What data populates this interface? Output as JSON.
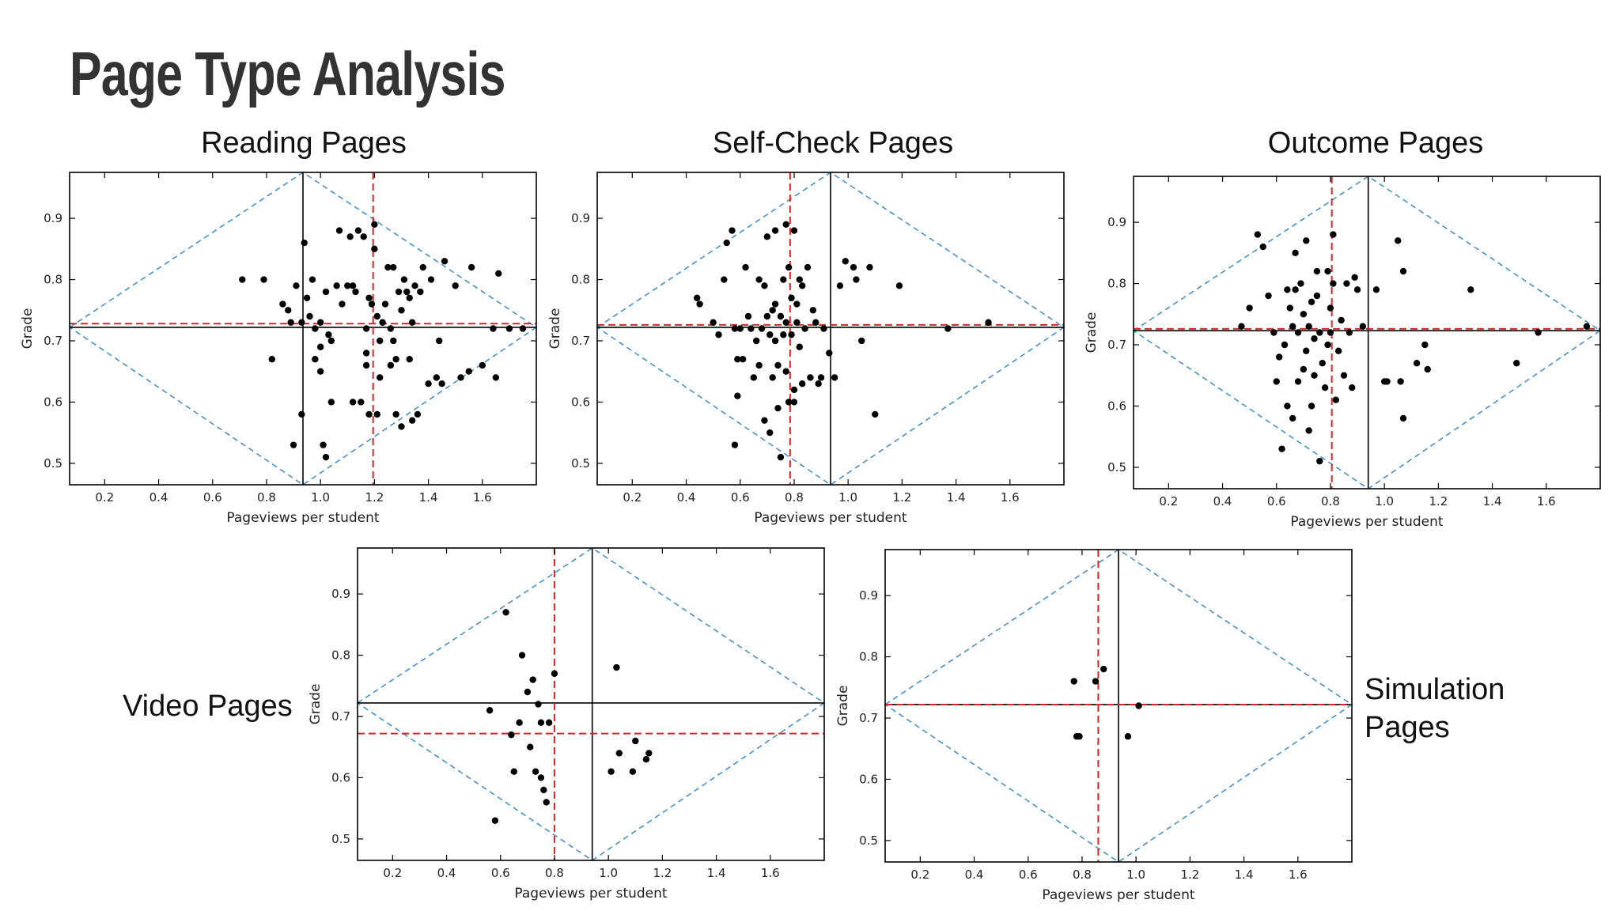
{
  "slide": {
    "title": "Page Type Analysis"
  },
  "colors": {
    "point": "#000000",
    "red_line": "#d62728",
    "blue_line": "#4a90c8",
    "black_line": "#000000"
  },
  "chart_data": [
    {
      "type": "scatter",
      "title": "Reading Pages",
      "xlabel": "Pageviews per student",
      "ylabel": "Grade",
      "xlim": [
        0.07,
        1.8
      ],
      "ylim": [
        0.465,
        0.975
      ],
      "xticks": [
        "0.2",
        "0.4",
        "0.6",
        "0.8",
        "1.0",
        "1.2",
        "1.4",
        "1.6"
      ],
      "yticks": [
        "0.5",
        "0.6",
        "0.7",
        "0.8",
        "0.9"
      ],
      "grid": false,
      "black_vline": 0.935,
      "black_hline": 0.722,
      "red_vline": 1.195,
      "red_hline": 0.728,
      "points": [
        [
          0.71,
          0.8
        ],
        [
          0.79,
          0.8
        ],
        [
          0.82,
          0.67
        ],
        [
          0.86,
          0.76
        ],
        [
          0.88,
          0.75
        ],
        [
          0.89,
          0.73
        ],
        [
          0.9,
          0.53
        ],
        [
          0.91,
          0.79
        ],
        [
          0.93,
          0.58
        ],
        [
          0.94,
          0.86
        ],
        [
          0.93,
          0.73
        ],
        [
          0.95,
          0.77
        ],
        [
          0.96,
          0.74
        ],
        [
          0.97,
          0.8
        ],
        [
          0.98,
          0.72
        ],
        [
          0.98,
          0.67
        ],
        [
          1.0,
          0.73
        ],
        [
          1.0,
          0.69
        ],
        [
          1.0,
          0.65
        ],
        [
          1.01,
          0.53
        ],
        [
          1.02,
          0.51
        ],
        [
          1.02,
          0.78
        ],
        [
          1.03,
          0.71
        ],
        [
          1.04,
          0.7
        ],
        [
          1.04,
          0.6
        ],
        [
          1.06,
          0.79
        ],
        [
          1.07,
          0.88
        ],
        [
          1.08,
          0.76
        ],
        [
          1.1,
          0.79
        ],
        [
          1.11,
          0.87
        ],
        [
          1.12,
          0.79
        ],
        [
          1.12,
          0.6
        ],
        [
          1.13,
          0.78
        ],
        [
          1.14,
          0.88
        ],
        [
          1.15,
          0.6
        ],
        [
          1.16,
          0.87
        ],
        [
          1.17,
          0.72
        ],
        [
          1.17,
          0.68
        ],
        [
          1.17,
          0.66
        ],
        [
          1.18,
          0.77
        ],
        [
          1.18,
          0.58
        ],
        [
          1.19,
          0.76
        ],
        [
          1.2,
          0.89
        ],
        [
          1.2,
          0.85
        ],
        [
          1.21,
          0.74
        ],
        [
          1.21,
          0.58
        ],
        [
          1.22,
          0.7
        ],
        [
          1.22,
          0.64
        ],
        [
          1.23,
          0.73
        ],
        [
          1.24,
          0.76
        ],
        [
          1.25,
          0.82
        ],
        [
          1.26,
          0.72
        ],
        [
          1.26,
          0.66
        ],
        [
          1.27,
          0.7
        ],
        [
          1.27,
          0.82
        ],
        [
          1.28,
          0.67
        ],
        [
          1.28,
          0.58
        ],
        [
          1.29,
          0.78
        ],
        [
          1.3,
          0.75
        ],
        [
          1.3,
          0.56
        ],
        [
          1.31,
          0.8
        ],
        [
          1.32,
          0.78
        ],
        [
          1.33,
          0.77
        ],
        [
          1.33,
          0.67
        ],
        [
          1.34,
          0.73
        ],
        [
          1.34,
          0.57
        ],
        [
          1.35,
          0.79
        ],
        [
          1.36,
          0.58
        ],
        [
          1.37,
          0.78
        ],
        [
          1.38,
          0.82
        ],
        [
          1.4,
          0.63
        ],
        [
          1.41,
          0.8
        ],
        [
          1.43,
          0.64
        ],
        [
          1.44,
          0.7
        ],
        [
          1.45,
          0.63
        ],
        [
          1.46,
          0.83
        ],
        [
          1.5,
          0.79
        ],
        [
          1.52,
          0.64
        ],
        [
          1.55,
          0.65
        ],
        [
          1.56,
          0.82
        ],
        [
          1.6,
          0.66
        ],
        [
          1.64,
          0.72
        ],
        [
          1.65,
          0.64
        ],
        [
          1.66,
          0.81
        ],
        [
          1.7,
          0.72
        ],
        [
          1.75,
          0.72
        ]
      ]
    },
    {
      "type": "scatter",
      "title": "Self-Check Pages",
      "xlabel": "Pageviews per student",
      "ylabel": "Grade",
      "xlim": [
        0.07,
        1.8
      ],
      "ylim": [
        0.465,
        0.975
      ],
      "xticks": [
        "0.2",
        "0.4",
        "0.6",
        "0.8",
        "1.0",
        "1.2",
        "1.4",
        "1.6"
      ],
      "yticks": [
        "0.5",
        "0.6",
        "0.7",
        "0.8",
        "0.9"
      ],
      "grid": false,
      "black_vline": 0.935,
      "black_hline": 0.722,
      "red_vline": 0.785,
      "red_hline": 0.726,
      "points": [
        [
          0.44,
          0.77
        ],
        [
          0.45,
          0.76
        ],
        [
          0.5,
          0.73
        ],
        [
          0.52,
          0.71
        ],
        [
          0.54,
          0.8
        ],
        [
          0.55,
          0.86
        ],
        [
          0.57,
          0.88
        ],
        [
          0.58,
          0.72
        ],
        [
          0.58,
          0.53
        ],
        [
          0.59,
          0.61
        ],
        [
          0.59,
          0.67
        ],
        [
          0.6,
          0.72
        ],
        [
          0.61,
          0.67
        ],
        [
          0.62,
          0.82
        ],
        [
          0.63,
          0.74
        ],
        [
          0.64,
          0.72
        ],
        [
          0.65,
          0.64
        ],
        [
          0.66,
          0.7
        ],
        [
          0.67,
          0.8
        ],
        [
          0.67,
          0.66
        ],
        [
          0.68,
          0.72
        ],
        [
          0.69,
          0.79
        ],
        [
          0.69,
          0.57
        ],
        [
          0.7,
          0.87
        ],
        [
          0.7,
          0.74
        ],
        [
          0.71,
          0.71
        ],
        [
          0.71,
          0.55
        ],
        [
          0.72,
          0.75
        ],
        [
          0.72,
          0.64
        ],
        [
          0.73,
          0.88
        ],
        [
          0.73,
          0.76
        ],
        [
          0.73,
          0.7
        ],
        [
          0.74,
          0.66
        ],
        [
          0.74,
          0.59
        ],
        [
          0.75,
          0.74
        ],
        [
          0.75,
          0.51
        ],
        [
          0.76,
          0.8
        ],
        [
          0.76,
          0.71
        ],
        [
          0.77,
          0.89
        ],
        [
          0.77,
          0.73
        ],
        [
          0.77,
          0.65
        ],
        [
          0.78,
          0.6
        ],
        [
          0.78,
          0.82
        ],
        [
          0.79,
          0.77
        ],
        [
          0.79,
          0.71
        ],
        [
          0.8,
          0.62
        ],
        [
          0.8,
          0.88
        ],
        [
          0.8,
          0.6
        ],
        [
          0.81,
          0.76
        ],
        [
          0.81,
          0.73
        ],
        [
          0.82,
          0.8
        ],
        [
          0.82,
          0.69
        ],
        [
          0.83,
          0.79
        ],
        [
          0.83,
          0.63
        ],
        [
          0.84,
          0.72
        ],
        [
          0.85,
          0.82
        ],
        [
          0.86,
          0.64
        ],
        [
          0.87,
          0.75
        ],
        [
          0.88,
          0.73
        ],
        [
          0.89,
          0.63
        ],
        [
          0.9,
          0.64
        ],
        [
          0.91,
          0.72
        ],
        [
          0.93,
          0.68
        ],
        [
          0.95,
          0.64
        ],
        [
          0.97,
          0.79
        ],
        [
          0.99,
          0.83
        ],
        [
          1.02,
          0.82
        ],
        [
          1.03,
          0.8
        ],
        [
          1.05,
          0.7
        ],
        [
          1.08,
          0.82
        ],
        [
          1.1,
          0.58
        ],
        [
          1.19,
          0.79
        ],
        [
          1.37,
          0.72
        ],
        [
          1.52,
          0.73
        ]
      ]
    },
    {
      "type": "scatter",
      "title": "Outcome Pages",
      "xlabel": "Pageviews per student",
      "ylabel": "Grade",
      "xlim": [
        0.07,
        1.8
      ],
      "ylim": [
        0.465,
        0.975
      ],
      "xticks": [
        "0.2",
        "0.4",
        "0.6",
        "0.8",
        "1.0",
        "1.2",
        "1.4",
        "1.6"
      ],
      "yticks": [
        "0.5",
        "0.6",
        "0.7",
        "0.8",
        "0.9"
      ],
      "grid": false,
      "black_vline": 0.94,
      "black_hline": 0.723,
      "red_vline": 0.805,
      "red_hline": 0.726,
      "points": [
        [
          0.47,
          0.73
        ],
        [
          0.5,
          0.76
        ],
        [
          0.53,
          0.88
        ],
        [
          0.55,
          0.86
        ],
        [
          0.57,
          0.78
        ],
        [
          0.59,
          0.72
        ],
        [
          0.6,
          0.64
        ],
        [
          0.61,
          0.68
        ],
        [
          0.62,
          0.53
        ],
        [
          0.63,
          0.7
        ],
        [
          0.64,
          0.79
        ],
        [
          0.64,
          0.6
        ],
        [
          0.65,
          0.76
        ],
        [
          0.66,
          0.73
        ],
        [
          0.66,
          0.58
        ],
        [
          0.67,
          0.85
        ],
        [
          0.67,
          0.79
        ],
        [
          0.68,
          0.72
        ],
        [
          0.68,
          0.64
        ],
        [
          0.69,
          0.8
        ],
        [
          0.7,
          0.75
        ],
        [
          0.7,
          0.66
        ],
        [
          0.71,
          0.87
        ],
        [
          0.71,
          0.69
        ],
        [
          0.72,
          0.56
        ],
        [
          0.72,
          0.73
        ],
        [
          0.73,
          0.77
        ],
        [
          0.73,
          0.6
        ],
        [
          0.74,
          0.71
        ],
        [
          0.74,
          0.65
        ],
        [
          0.75,
          0.82
        ],
        [
          0.75,
          0.78
        ],
        [
          0.76,
          0.51
        ],
        [
          0.76,
          0.72
        ],
        [
          0.77,
          0.67
        ],
        [
          0.78,
          0.63
        ],
        [
          0.79,
          0.7
        ],
        [
          0.79,
          0.82
        ],
        [
          0.8,
          0.72
        ],
        [
          0.8,
          0.76
        ],
        [
          0.81,
          0.8
        ],
        [
          0.81,
          0.88
        ],
        [
          0.82,
          0.61
        ],
        [
          0.83,
          0.69
        ],
        [
          0.84,
          0.74
        ],
        [
          0.85,
          0.65
        ],
        [
          0.86,
          0.8
        ],
        [
          0.87,
          0.72
        ],
        [
          0.88,
          0.63
        ],
        [
          0.89,
          0.81
        ],
        [
          0.9,
          0.79
        ],
        [
          0.92,
          0.73
        ],
        [
          0.97,
          0.79
        ],
        [
          1.0,
          0.64
        ],
        [
          1.01,
          0.64
        ],
        [
          1.05,
          0.87
        ],
        [
          1.06,
          0.64
        ],
        [
          1.07,
          0.82
        ],
        [
          1.07,
          0.58
        ],
        [
          1.12,
          0.67
        ],
        [
          1.15,
          0.7
        ],
        [
          1.16,
          0.66
        ],
        [
          1.32,
          0.79
        ],
        [
          1.49,
          0.67
        ],
        [
          1.57,
          0.72
        ],
        [
          1.75,
          0.73
        ]
      ]
    },
    {
      "type": "scatter",
      "title": "Video Pages",
      "xlabel": "Pageviews per student",
      "ylabel": "Grade",
      "xlim": [
        0.07,
        1.8
      ],
      "ylim": [
        0.465,
        0.975
      ],
      "xticks": [
        "0.2",
        "0.4",
        "0.6",
        "0.8",
        "1.0",
        "1.2",
        "1.4",
        "1.6"
      ],
      "yticks": [
        "0.5",
        "0.6",
        "0.7",
        "0.8",
        "0.9"
      ],
      "grid": false,
      "black_vline": 0.94,
      "black_hline": 0.722,
      "red_vline": 0.8,
      "red_hline": 0.672,
      "points": [
        [
          0.56,
          0.71
        ],
        [
          0.58,
          0.53
        ],
        [
          0.62,
          0.87
        ],
        [
          0.64,
          0.67
        ],
        [
          0.65,
          0.61
        ],
        [
          0.67,
          0.69
        ],
        [
          0.68,
          0.8
        ],
        [
          0.7,
          0.74
        ],
        [
          0.71,
          0.65
        ],
        [
          0.72,
          0.76
        ],
        [
          0.73,
          0.61
        ],
        [
          0.74,
          0.72
        ],
        [
          0.75,
          0.69
        ],
        [
          0.75,
          0.6
        ],
        [
          0.76,
          0.58
        ],
        [
          0.77,
          0.56
        ],
        [
          0.78,
          0.69
        ],
        [
          0.8,
          0.77
        ],
        [
          1.01,
          0.61
        ],
        [
          1.03,
          0.78
        ],
        [
          1.04,
          0.64
        ],
        [
          1.09,
          0.61
        ],
        [
          1.1,
          0.66
        ],
        [
          1.14,
          0.63
        ],
        [
          1.15,
          0.64
        ]
      ]
    },
    {
      "type": "scatter",
      "title": "Simulation Pages",
      "xlabel": "Pageviews per student",
      "ylabel": "Grade",
      "xlim": [
        0.07,
        1.8
      ],
      "ylim": [
        0.465,
        0.975
      ],
      "xticks": [
        "0.2",
        "0.4",
        "0.6",
        "0.8",
        "1.0",
        "1.2",
        "1.4",
        "1.6"
      ],
      "yticks": [
        "0.5",
        "0.6",
        "0.7",
        "0.8",
        "0.9"
      ],
      "grid": false,
      "black_vline": 0.935,
      "black_hline": 0.722,
      "red_vline": 0.86,
      "red_hline": 0.722,
      "points": [
        [
          0.77,
          0.76
        ],
        [
          0.78,
          0.67
        ],
        [
          0.79,
          0.67
        ],
        [
          0.85,
          0.76
        ],
        [
          0.88,
          0.78
        ],
        [
          0.97,
          0.67
        ],
        [
          1.01,
          0.72
        ]
      ]
    }
  ]
}
